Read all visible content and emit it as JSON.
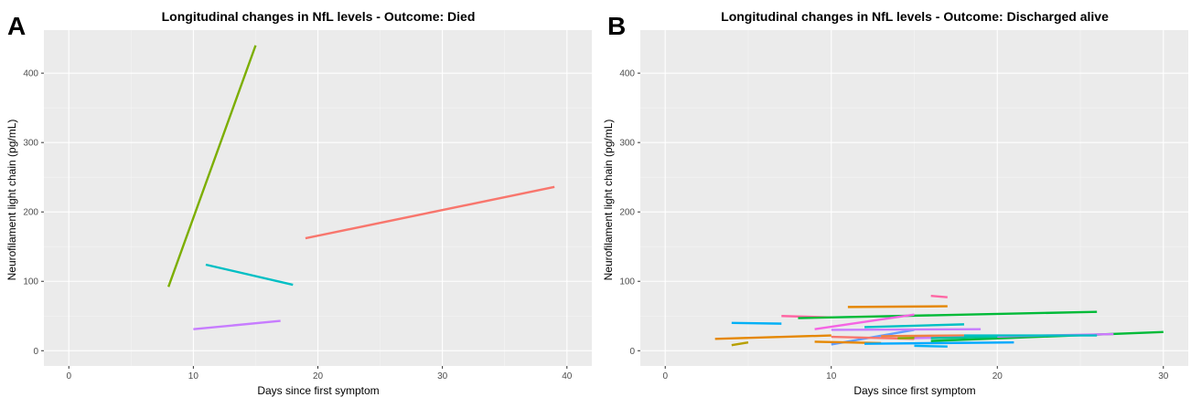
{
  "chart_data": [
    {
      "panel": "A",
      "type": "line",
      "title": "Longitudinal changes in NfL levels - Outcome: Died",
      "xlabel": "Days since first symptom",
      "ylabel": "Neurofilament light chain (pg/mL)",
      "xlim": [
        -2,
        42
      ],
      "ylim": [
        -22,
        462
      ],
      "x_ticks": [
        0,
        10,
        20,
        30,
        40
      ],
      "y_ticks": [
        0,
        100,
        200,
        300,
        400
      ],
      "grid": true,
      "legend": "none",
      "series": [
        {
          "color": "#7cae00",
          "x": [
            8,
            15
          ],
          "y": [
            92,
            440
          ]
        },
        {
          "color": "#00bfc4",
          "x": [
            11,
            18
          ],
          "y": [
            124,
            95
          ]
        },
        {
          "color": "#c77cff",
          "x": [
            10,
            17
          ],
          "y": [
            31,
            43
          ]
        },
        {
          "color": "#f8766d",
          "x": [
            19,
            39
          ],
          "y": [
            162,
            236
          ]
        }
      ]
    },
    {
      "panel": "B",
      "type": "line",
      "title": "Longitudinal changes in NfL levels - Outcome: Discharged alive",
      "xlabel": "Days since first symptom",
      "ylabel": "Neurofilament light chain (pg/mL)",
      "xlim": [
        -1.5,
        31.5
      ],
      "ylim": [
        -22,
        462
      ],
      "x_ticks": [
        0,
        10,
        20,
        30
      ],
      "y_ticks": [
        0,
        100,
        200,
        300,
        400
      ],
      "grid": true,
      "legend": "none",
      "series": [
        {
          "color": "#00b0f6",
          "x": [
            4,
            7
          ],
          "y": [
            40,
            39
          ]
        },
        {
          "color": "#b79f00",
          "x": [
            4,
            5
          ],
          "y": [
            8,
            12
          ]
        },
        {
          "color": "#e58700",
          "x": [
            3,
            10
          ],
          "y": [
            17,
            22
          ]
        },
        {
          "color": "#ff67a4",
          "x": [
            7,
            10
          ],
          "y": [
            50,
            48
          ]
        },
        {
          "color": "#00ba38",
          "x": [
            8,
            26
          ],
          "y": [
            47,
            56
          ]
        },
        {
          "color": "#e58700",
          "x": [
            11,
            17
          ],
          "y": [
            63,
            64
          ]
        },
        {
          "color": "#ff67a4",
          "x": [
            16,
            17
          ],
          "y": [
            79,
            77
          ]
        },
        {
          "color": "#f564e3",
          "x": [
            9,
            15
          ],
          "y": [
            31,
            52
          ]
        },
        {
          "color": "#619cff",
          "x": [
            10,
            15
          ],
          "y": [
            9,
            30
          ]
        },
        {
          "color": "#00bfc4",
          "x": [
            12,
            18
          ],
          "y": [
            34,
            38
          ]
        },
        {
          "color": "#c77cff",
          "x": [
            10,
            19
          ],
          "y": [
            30,
            31
          ]
        },
        {
          "color": "#e58700",
          "x": [
            9,
            13
          ],
          "y": [
            13,
            11
          ]
        },
        {
          "color": "#f8766d",
          "x": [
            10,
            15
          ],
          "y": [
            20,
            17
          ]
        },
        {
          "color": "#00a9ff",
          "x": [
            12,
            21
          ],
          "y": [
            10,
            12
          ]
        },
        {
          "color": "#00b0f6",
          "x": [
            15,
            17
          ],
          "y": [
            7,
            6
          ]
        },
        {
          "color": "#7cae00",
          "x": [
            14,
            18
          ],
          "y": [
            18,
            20
          ]
        },
        {
          "color": "#00ba38",
          "x": [
            16,
            30
          ],
          "y": [
            14,
            27
          ]
        },
        {
          "color": "#ed8141",
          "x": [
            13,
            18
          ],
          "y": [
            21,
            22
          ]
        },
        {
          "color": "#cf78ff",
          "x": [
            15,
            27
          ],
          "y": [
            18,
            24
          ]
        },
        {
          "color": "#00c19a",
          "x": [
            16,
            20
          ],
          "y": [
            18,
            20
          ]
        },
        {
          "color": "#00bfc4",
          "x": [
            18,
            26
          ],
          "y": [
            22,
            22
          ]
        }
      ]
    }
  ]
}
